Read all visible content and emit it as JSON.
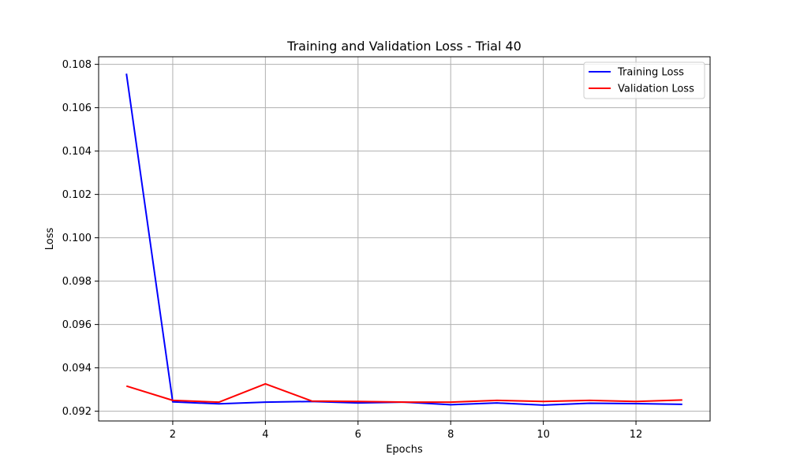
{
  "chart_data": {
    "type": "line",
    "title": "Training and Validation Loss - Trial 40",
    "xlabel": "Epochs",
    "ylabel": "Loss",
    "xlim": [
      0.4,
      13.6
    ],
    "ylim": [
      0.09155,
      0.10835
    ],
    "xticks": [
      2,
      4,
      6,
      8,
      10,
      12
    ],
    "xtick_labels": [
      "2",
      "4",
      "6",
      "8",
      "10",
      "12"
    ],
    "yticks": [
      0.092,
      0.094,
      0.096,
      0.098,
      0.1,
      0.102,
      0.104,
      0.106,
      0.108
    ],
    "ytick_labels": [
      "0.092",
      "0.094",
      "0.096",
      "0.098",
      "0.100",
      "0.102",
      "0.104",
      "0.106",
      "0.108"
    ],
    "grid": true,
    "legend_position": "top-right",
    "x": [
      1,
      2,
      3,
      4,
      5,
      6,
      7,
      8,
      9,
      10,
      11,
      12,
      13
    ],
    "series": [
      {
        "name": "Training Loss",
        "color": "#0000ff",
        "values": [
          0.10757,
          0.09243,
          0.09234,
          0.09242,
          0.09245,
          0.09238,
          0.09242,
          0.0923,
          0.09238,
          0.09228,
          0.09237,
          0.09235,
          0.09232
        ]
      },
      {
        "name": "Validation Loss",
        "color": "#ff0000",
        "values": [
          0.09316,
          0.0925,
          0.09242,
          0.09326,
          0.09247,
          0.09245,
          0.09242,
          0.09242,
          0.0925,
          0.09245,
          0.0925,
          0.09245,
          0.09252
        ]
      }
    ]
  }
}
